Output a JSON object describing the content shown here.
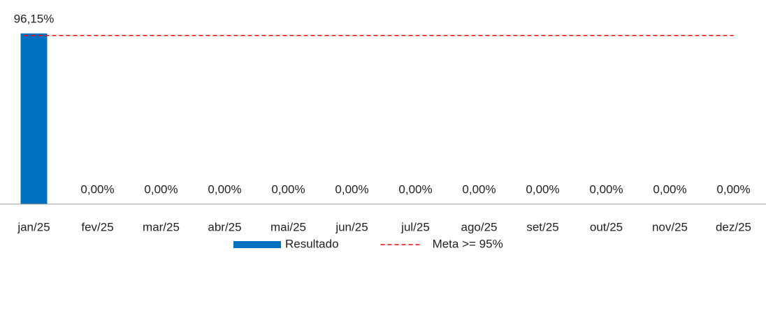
{
  "chart_data": {
    "type": "bar",
    "categories": [
      "jan/25",
      "fev/25",
      "mar/25",
      "abr/25",
      "mai/25",
      "jun/25",
      "jul/25",
      "ago/25",
      "set/25",
      "out/25",
      "nov/25",
      "dez/25"
    ],
    "series": [
      {
        "name": "Resultado",
        "type": "bar",
        "color": "#0070c0",
        "values": [
          96.15,
          0,
          0,
          0,
          0,
          0,
          0,
          0,
          0,
          0,
          0,
          0
        ],
        "value_labels": [
          "96,15%",
          "0,00%",
          "0,00%",
          "0,00%",
          "0,00%",
          "0,00%",
          "0,00%",
          "0,00%",
          "0,00%",
          "0,00%",
          "0,00%",
          "0,00%"
        ]
      },
      {
        "name": "Meta >= 95%",
        "type": "line",
        "color": "#ff0000",
        "values": [
          95,
          95,
          95,
          95,
          95,
          95,
          95,
          95,
          95,
          95,
          95,
          95
        ]
      }
    ],
    "ylim": [
      0,
      100
    ],
    "legend": "bottom"
  }
}
